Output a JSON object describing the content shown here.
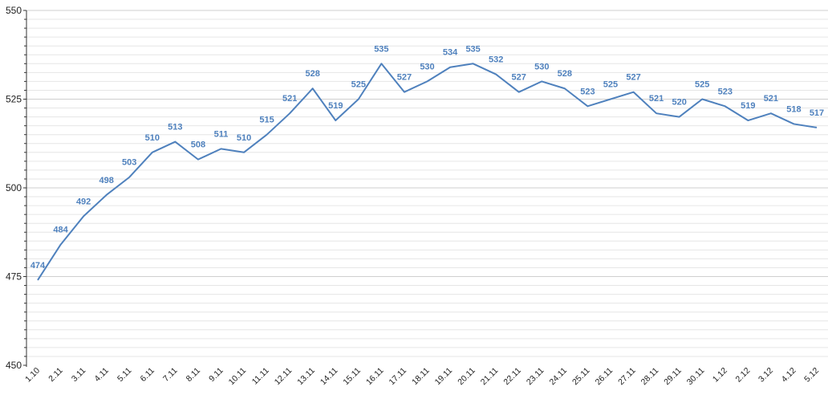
{
  "chart_data": {
    "type": "line",
    "title": "",
    "xlabel": "",
    "ylabel": "",
    "ylim": [
      450,
      550
    ],
    "y_major_ticks": [
      450,
      475,
      500,
      525,
      550
    ],
    "grid": true,
    "line_color": "#4f81bd",
    "grid_color": "#dcdcdc",
    "categories": [
      "1.10",
      "2.11",
      "3.11",
      "4.11",
      "5.11",
      "6.11",
      "7.11",
      "8.11",
      "9.11",
      "10.11",
      "11.11",
      "12.11",
      "13.11",
      "14.11",
      "15.11",
      "16.11",
      "17.11",
      "18.11",
      "19.11",
      "20.11",
      "21.11",
      "22.11",
      "23.11",
      "24.11",
      "25.11",
      "26.11",
      "27.11",
      "28.11",
      "29.11",
      "30.11",
      "1.12",
      "2.12",
      "3.12",
      "4.12",
      "5.12"
    ],
    "values": [
      474,
      484,
      492,
      498,
      503,
      510,
      513,
      508,
      511,
      510,
      515,
      521,
      528,
      519,
      525,
      535,
      527,
      530,
      534,
      535,
      532,
      527,
      530,
      528,
      523,
      525,
      527,
      521,
      520,
      525,
      523,
      519,
      521,
      518,
      517
    ]
  }
}
